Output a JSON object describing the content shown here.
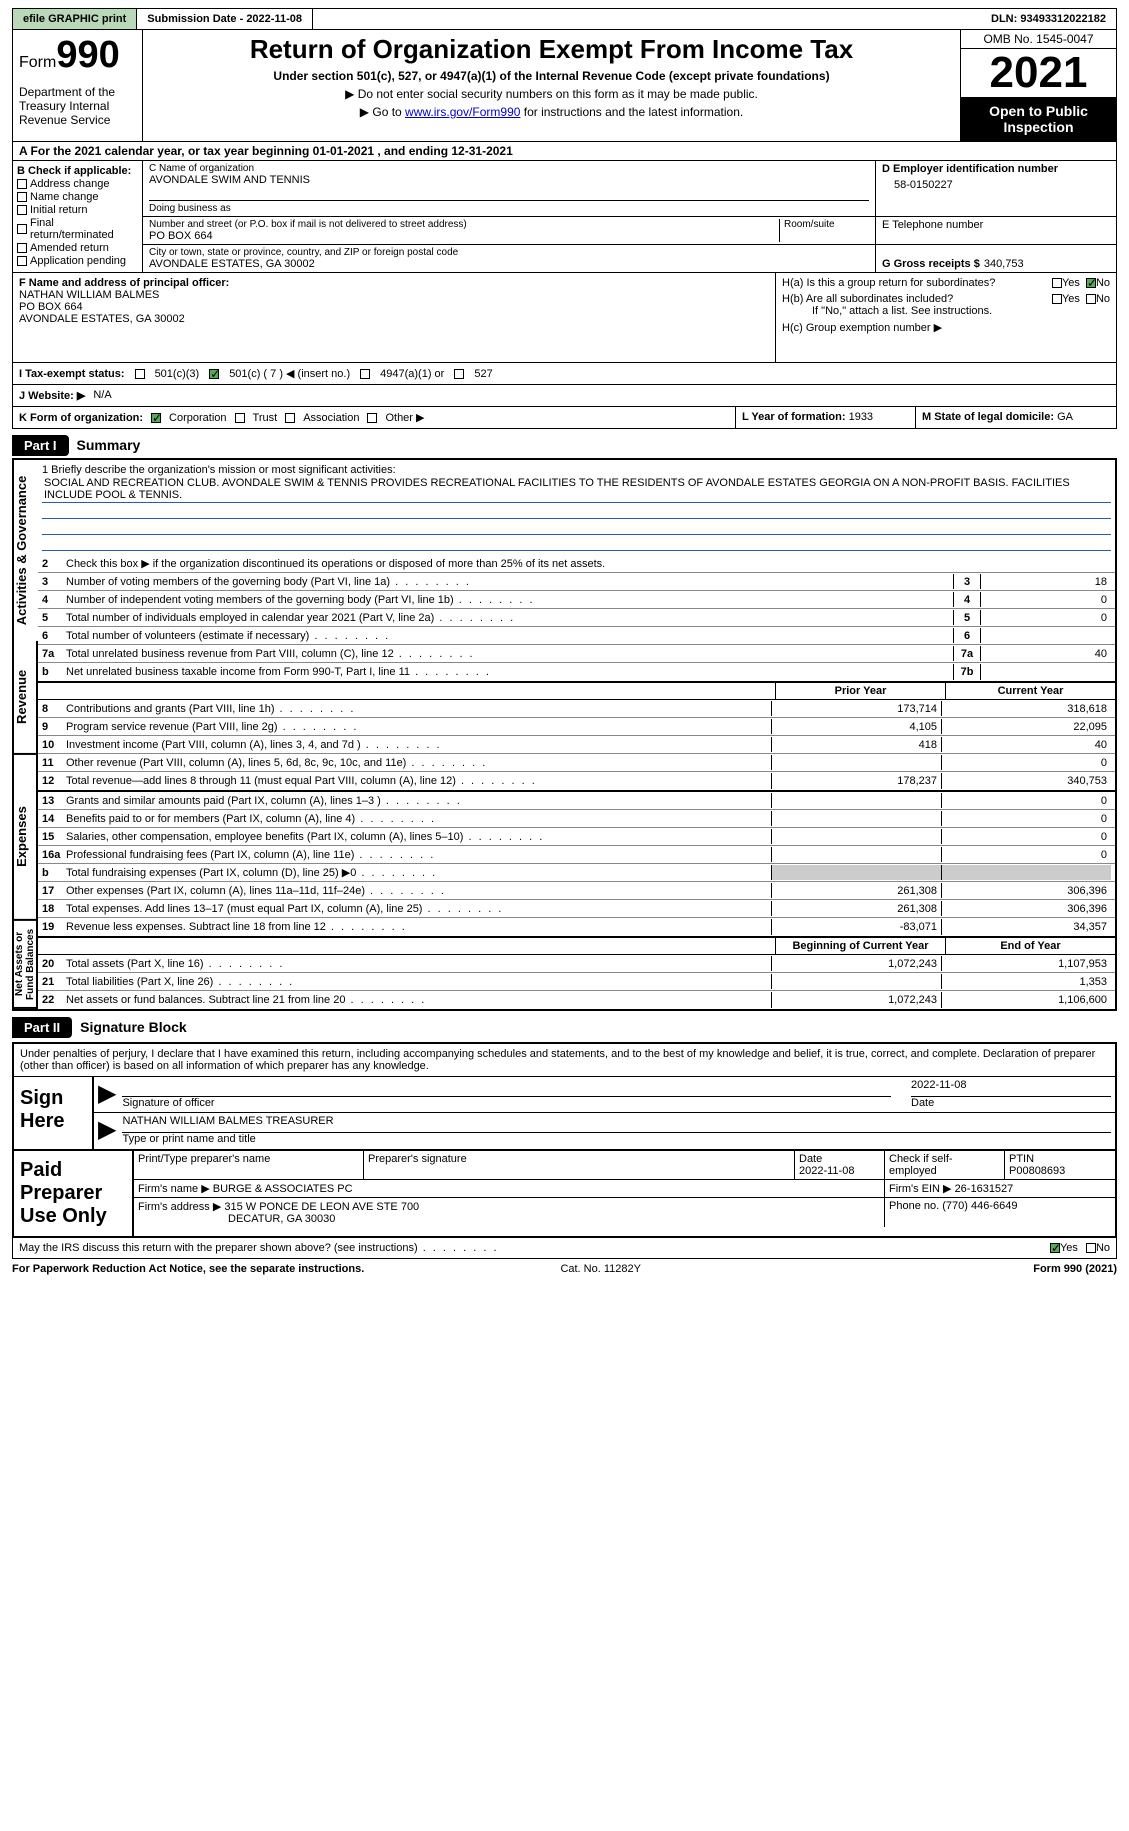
{
  "topbar": {
    "efile": "efile GRAPHIC print",
    "submission": "Submission Date - 2022-11-08",
    "dln": "DLN: 93493312022182"
  },
  "header": {
    "form_prefix": "Form",
    "form_num": "990",
    "dept": "Department of the Treasury Internal Revenue Service",
    "title": "Return of Organization Exempt From Income Tax",
    "subtitle": "Under section 501(c), 527, or 4947(a)(1) of the Internal Revenue Code (except private foundations)",
    "note1": "▶ Do not enter social security numbers on this form as it may be made public.",
    "note2_pre": "▶ Go to ",
    "note2_link": "www.irs.gov/Form990",
    "note2_post": " for instructions and the latest information.",
    "omb": "OMB No. 1545-0047",
    "year": "2021",
    "inspect": "Open to Public Inspection"
  },
  "row_a": "A For the 2021 calendar year, or tax year beginning 01-01-2021   , and ending 12-31-2021",
  "col_b": {
    "label": "B Check if applicable:",
    "items": [
      "Address change",
      "Name change",
      "Initial return",
      "Final return/terminated",
      "Amended return",
      "Application pending"
    ]
  },
  "org": {
    "c_label": "C Name of organization",
    "name": "AVONDALE SWIM AND TENNIS",
    "dba_label": "Doing business as",
    "addr_label": "Number and street (or P.O. box if mail is not delivered to street address)",
    "room_label": "Room/suite",
    "addr": "PO BOX 664",
    "city_label": "City or town, state or province, country, and ZIP or foreign postal code",
    "city": "AVONDALE ESTATES, GA  30002",
    "d_label": "D Employer identification number",
    "ein": "58-0150227",
    "e_label": "E Telephone number",
    "g_label": "G Gross receipts $",
    "gross": "340,753"
  },
  "officer": {
    "f_label": "F  Name and address of principal officer:",
    "name": "NATHAN WILLIAM BALMES",
    "addr1": "PO BOX 664",
    "addr2": "AVONDALE ESTATES, GA  30002"
  },
  "h": {
    "a": "H(a)  Is this a group return for subordinates?",
    "b": "H(b)  Are all subordinates included?",
    "bnote": "If \"No,\" attach a list. See instructions.",
    "c": "H(c)  Group exemption number ▶",
    "yes": "Yes",
    "no": "No"
  },
  "i": {
    "label": "I   Tax-exempt status:",
    "opts": [
      "501(c)(3)",
      "501(c) ( 7 ) ◀ (insert no.)",
      "4947(a)(1) or",
      "527"
    ]
  },
  "j": {
    "label": "J   Website: ▶",
    "val": "N/A"
  },
  "k": {
    "label": "K Form of organization:",
    "opts": [
      "Corporation",
      "Trust",
      "Association",
      "Other ▶"
    ],
    "l_label": "L Year of formation:",
    "l_val": "1933",
    "m_label": "M State of legal domicile:",
    "m_val": "GA"
  },
  "part1": {
    "hdr": "Part I",
    "title": "Summary"
  },
  "gov": {
    "tab": "Activities & Governance",
    "l1": "1  Briefly describe the organization's mission or most significant activities:",
    "mission": "SOCIAL AND RECREATION CLUB. AVONDALE SWIM & TENNIS PROVIDES RECREATIONAL FACILITIES TO THE RESIDENTS OF AVONDALE ESTATES GEORGIA ON A NON-PROFIT BASIS. FACILITIES INCLUDE POOL & TENNIS.",
    "l2": "Check this box ▶      if the organization discontinued its operations or disposed of more than 25% of its net assets.",
    "lines": [
      {
        "n": "3",
        "t": "Number of voting members of the governing body (Part VI, line 1a)",
        "box": "3",
        "v": "18"
      },
      {
        "n": "4",
        "t": "Number of independent voting members of the governing body (Part VI, line 1b)",
        "box": "4",
        "v": "0"
      },
      {
        "n": "5",
        "t": "Total number of individuals employed in calendar year 2021 (Part V, line 2a)",
        "box": "5",
        "v": "0"
      },
      {
        "n": "6",
        "t": "Total number of volunteers (estimate if necessary)",
        "box": "6",
        "v": ""
      },
      {
        "n": "7a",
        "t": "Total unrelated business revenue from Part VIII, column (C), line 12",
        "box": "7a",
        "v": "40"
      },
      {
        "n": "b",
        "t": "Net unrelated business taxable income from Form 990-T, Part I, line 11",
        "box": "7b",
        "v": ""
      }
    ]
  },
  "rev": {
    "tab": "Revenue",
    "hdr_prior": "Prior Year",
    "hdr_curr": "Current Year",
    "lines": [
      {
        "n": "8",
        "t": "Contributions and grants (Part VIII, line 1h)",
        "p": "173,714",
        "c": "318,618"
      },
      {
        "n": "9",
        "t": "Program service revenue (Part VIII, line 2g)",
        "p": "4,105",
        "c": "22,095"
      },
      {
        "n": "10",
        "t": "Investment income (Part VIII, column (A), lines 3, 4, and 7d )",
        "p": "418",
        "c": "40"
      },
      {
        "n": "11",
        "t": "Other revenue (Part VIII, column (A), lines 5, 6d, 8c, 9c, 10c, and 11e)",
        "p": "",
        "c": "0"
      },
      {
        "n": "12",
        "t": "Total revenue—add lines 8 through 11 (must equal Part VIII, column (A), line 12)",
        "p": "178,237",
        "c": "340,753"
      }
    ]
  },
  "exp": {
    "tab": "Expenses",
    "lines": [
      {
        "n": "13",
        "t": "Grants and similar amounts paid (Part IX, column (A), lines 1–3 )",
        "p": "",
        "c": "0"
      },
      {
        "n": "14",
        "t": "Benefits paid to or for members (Part IX, column (A), line 4)",
        "p": "",
        "c": "0"
      },
      {
        "n": "15",
        "t": "Salaries, other compensation, employee benefits (Part IX, column (A), lines 5–10)",
        "p": "",
        "c": "0"
      },
      {
        "n": "16a",
        "t": "Professional fundraising fees (Part IX, column (A), line 11e)",
        "p": "",
        "c": "0"
      },
      {
        "n": "b",
        "t": "Total fundraising expenses (Part IX, column (D), line 25) ▶0",
        "p": "grey",
        "c": "grey"
      },
      {
        "n": "17",
        "t": "Other expenses (Part IX, column (A), lines 11a–11d, 11f–24e)",
        "p": "261,308",
        "c": "306,396"
      },
      {
        "n": "18",
        "t": "Total expenses. Add lines 13–17 (must equal Part IX, column (A), line 25)",
        "p": "261,308",
        "c": "306,396"
      },
      {
        "n": "19",
        "t": "Revenue less expenses. Subtract line 18 from line 12",
        "p": "-83,071",
        "c": "34,357"
      }
    ]
  },
  "net": {
    "tab": "Net Assets or Fund Balances",
    "hdr_beg": "Beginning of Current Year",
    "hdr_end": "End of Year",
    "lines": [
      {
        "n": "20",
        "t": "Total assets (Part X, line 16)",
        "p": "1,072,243",
        "c": "1,107,953"
      },
      {
        "n": "21",
        "t": "Total liabilities (Part X, line 26)",
        "p": "",
        "c": "1,353"
      },
      {
        "n": "22",
        "t": "Net assets or fund balances. Subtract line 21 from line 20",
        "p": "1,072,243",
        "c": "1,106,600"
      }
    ]
  },
  "part2": {
    "hdr": "Part II",
    "title": "Signature Block"
  },
  "sig": {
    "decl": "Under penalties of perjury, I declare that I have examined this return, including accompanying schedules and statements, and to the best of my knowledge and belief, it is true, correct, and complete. Declaration of preparer (other than officer) is based on all information of which preparer has any knowledge.",
    "here": "Sign Here",
    "sig_of": "Signature of officer",
    "date": "Date",
    "date_val": "2022-11-08",
    "name_lbl": "Type or print name and title",
    "name": "NATHAN WILLIAM BALMES  TREASURER",
    "paid": "Paid Preparer Use Only",
    "pp_name_lbl": "Print/Type preparer's name",
    "pp_sig_lbl": "Preparer's signature",
    "pp_date_lbl": "Date",
    "pp_date": "2022-11-08",
    "pp_chk": "Check       if self-employed",
    "ptin_lbl": "PTIN",
    "ptin": "P00808693",
    "firm_name_lbl": "Firm's name    ▶",
    "firm_name": "BURGE & ASSOCIATES PC",
    "firm_ein_lbl": "Firm's EIN ▶",
    "firm_ein": "26-1631527",
    "firm_addr_lbl": "Firm's address ▶",
    "firm_addr": "315 W PONCE DE LEON AVE STE 700",
    "firm_city": "DECATUR, GA  30030",
    "phone_lbl": "Phone no.",
    "phone": "(770) 446-6649",
    "discuss": "May the IRS discuss this return with the preparer shown above? (see instructions)",
    "yes": "Yes",
    "no": "No"
  },
  "footer": {
    "left": "For Paperwork Reduction Act Notice, see the separate instructions.",
    "mid": "Cat. No. 11282Y",
    "right": "Form 990 (2021)"
  }
}
